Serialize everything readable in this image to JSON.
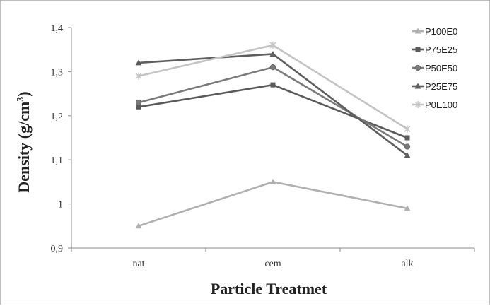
{
  "chart_data": {
    "type": "line",
    "categories": [
      "nat",
      "cem",
      "alk"
    ],
    "xlabel": "Particle Treatmet",
    "ylabel": "Density (g/cm",
    "ylabel_sup": "3",
    "ylabel_close": ")",
    "ylim": [
      0.9,
      1.4
    ],
    "yticks": [
      0.9,
      1.0,
      1.1,
      1.2,
      1.3,
      1.4
    ],
    "ytick_labels": [
      "0,9",
      "1",
      "1,1",
      "1,2",
      "1,3",
      "1,4"
    ],
    "grid": false,
    "legend_position": "top-right",
    "series": [
      {
        "name": "P100E0",
        "values": [
          0.95,
          1.05,
          0.99
        ],
        "color": "#b0b0b0",
        "marker": "triangle"
      },
      {
        "name": "P75E25",
        "values": [
          1.22,
          1.27,
          1.15
        ],
        "color": "#5a5a5a",
        "marker": "square"
      },
      {
        "name": "P50E50",
        "values": [
          1.23,
          1.31,
          1.13
        ],
        "color": "#7a7a7a",
        "marker": "circle"
      },
      {
        "name": "P25E75",
        "values": [
          1.32,
          1.34,
          1.11
        ],
        "color": "#5e5e5e",
        "marker": "triangle"
      },
      {
        "name": "P0E100",
        "values": [
          1.29,
          1.36,
          1.17
        ],
        "color": "#c4c4c4",
        "marker": "star"
      }
    ]
  }
}
